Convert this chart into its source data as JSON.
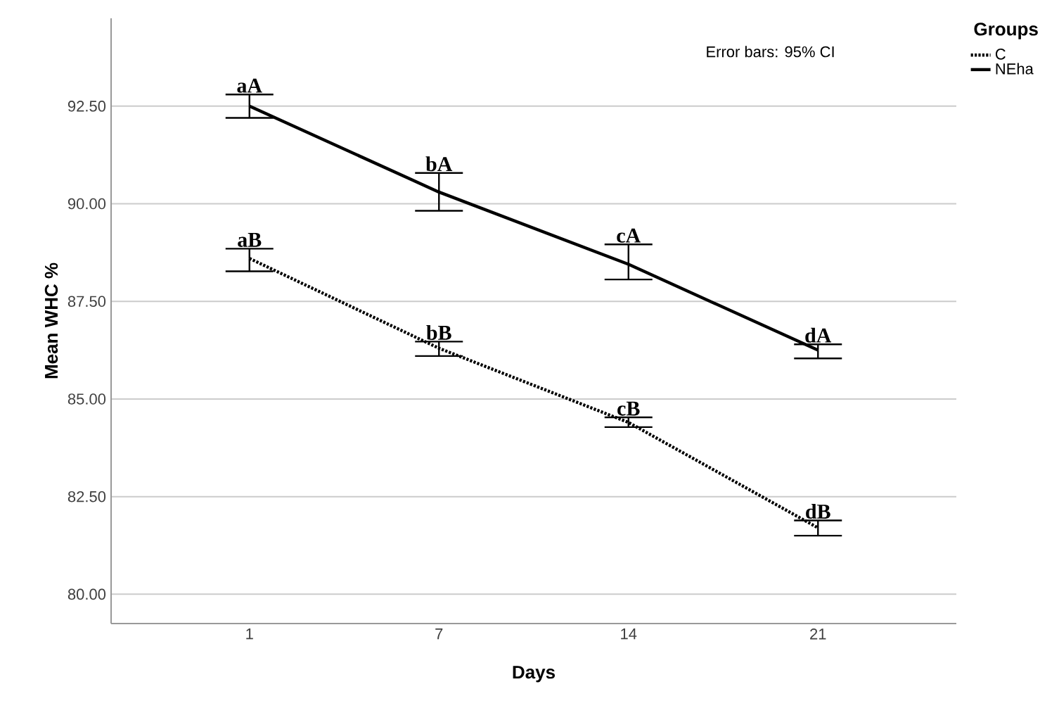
{
  "chart_data": {
    "type": "line",
    "xlabel": "Days",
    "ylabel": "Mean WHC %",
    "legend_title": "Groups",
    "categories": [
      "1",
      "7",
      "14",
      "21"
    ],
    "series": [
      {
        "name": "C",
        "color": "#000000",
        "line_style": "dotted",
        "values": [
          88.6,
          86.3,
          84.4,
          81.7
        ],
        "errors": [
          [
            88.27,
            88.85
          ],
          [
            86.1,
            86.47
          ],
          [
            84.28,
            84.53
          ],
          [
            81.5,
            81.89
          ]
        ]
      },
      {
        "name": "NEha",
        "color": "#000000",
        "line_style": "solid",
        "values": [
          92.5,
          90.3,
          88.45,
          86.25
        ],
        "errors": [
          [
            92.2,
            92.8
          ],
          [
            89.82,
            90.79
          ],
          [
            88.06,
            88.96
          ],
          [
            86.04,
            86.4
          ]
        ]
      }
    ],
    "ylim": [
      79.25,
      94.75
    ],
    "yticks": [
      {
        "value": 80,
        "label": "80.00"
      },
      {
        "value": 82.5,
        "label": "82.50"
      },
      {
        "value": 85,
        "label": "85.00"
      },
      {
        "value": 87.5,
        "label": "87.50"
      },
      {
        "value": 90,
        "label": "90.00"
      },
      {
        "value": 92.5,
        "label": "92.50"
      }
    ],
    "grid": "y",
    "legend": "top right",
    "marker": "none",
    "annotations": [
      "Error bars: 95% CI",
      {
        "text": "aA",
        "x": "1",
        "y": 92.8
      },
      {
        "text": "bA",
        "x": "7",
        "y": 90.79
      },
      {
        "text": "cA",
        "x": "14",
        "y": 88.96
      },
      {
        "text": "dA",
        "x": "21",
        "y": 86.4
      },
      {
        "text": "aB",
        "x": "1",
        "y": 88.85
      },
      {
        "text": "bB",
        "x": "7",
        "y": 86.47
      },
      {
        "text": "cB",
        "x": "14",
        "y": 84.53
      },
      {
        "text": "dB",
        "x": "21",
        "y": 81.89
      }
    ]
  }
}
